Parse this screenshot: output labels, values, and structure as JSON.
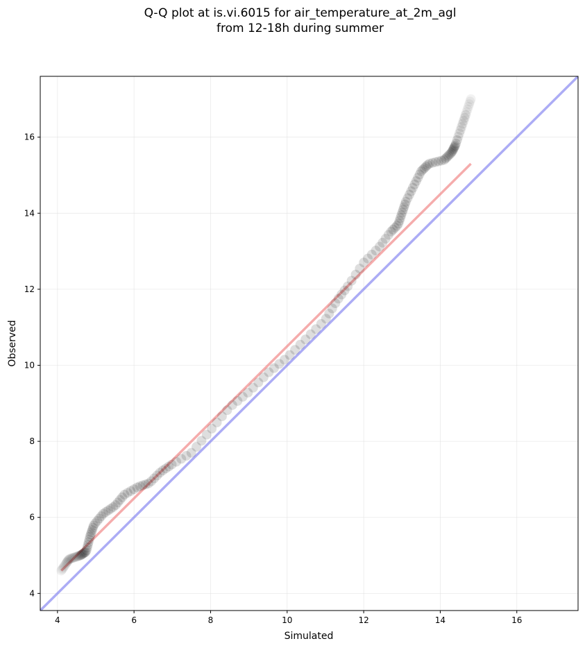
{
  "title_line1": "Q-Q plot at is.vi.6015 for air_temperature_at_2m_agl",
  "title_line2": "from 12-18h during summer",
  "colors": {
    "points": "#000000",
    "fit_line": "#f08080",
    "identity_line": "#8080f0",
    "grid": "#dcdcdc"
  },
  "chart_data": {
    "type": "scatter",
    "title": "Q-Q plot at is.vi.6015 for air_temperature_at_2m_agl\nfrom 12-18h during summer",
    "xlabel": "Simulated",
    "ylabel": "Observed",
    "xlim": [
      3.55,
      17.6
    ],
    "ylim": [
      3.55,
      17.6
    ],
    "xticks": [
      4,
      6,
      8,
      10,
      12,
      14,
      16
    ],
    "yticks": [
      4,
      6,
      8,
      10,
      12,
      14,
      16
    ],
    "grid": true,
    "reference_lines": [
      {
        "kind": "identity",
        "from": [
          3.55,
          3.55
        ],
        "to": [
          17.6,
          17.6
        ],
        "color": "#8080f0"
      },
      {
        "kind": "fit",
        "from": [
          4.1,
          4.6
        ],
        "to": [
          14.8,
          15.3
        ],
        "color": "#f08080"
      }
    ],
    "quantile_anchors": {
      "x": [
        4.1,
        4.3,
        4.6,
        4.75,
        4.85,
        4.95,
        5.2,
        5.5,
        5.75,
        6.1,
        6.4,
        6.7,
        7.0,
        7.5,
        8.0,
        8.5,
        9.0,
        9.5,
        10.0,
        10.5,
        11.0,
        11.3,
        11.6,
        12.0,
        12.4,
        12.7,
        12.9,
        13.0,
        13.1,
        13.3,
        13.5,
        13.7,
        14.1,
        14.3,
        14.4,
        14.6,
        14.8
      ],
      "y": [
        4.6,
        4.9,
        5.0,
        5.1,
        5.5,
        5.8,
        6.1,
        6.3,
        6.6,
        6.8,
        6.9,
        7.2,
        7.4,
        7.7,
        8.3,
        8.9,
        9.3,
        9.8,
        10.2,
        10.7,
        11.2,
        11.7,
        12.1,
        12.7,
        13.1,
        13.5,
        13.7,
        14.0,
        14.3,
        14.7,
        15.1,
        15.3,
        15.4,
        15.6,
        15.8,
        16.4,
        17.0
      ]
    },
    "n_points": 170
  }
}
